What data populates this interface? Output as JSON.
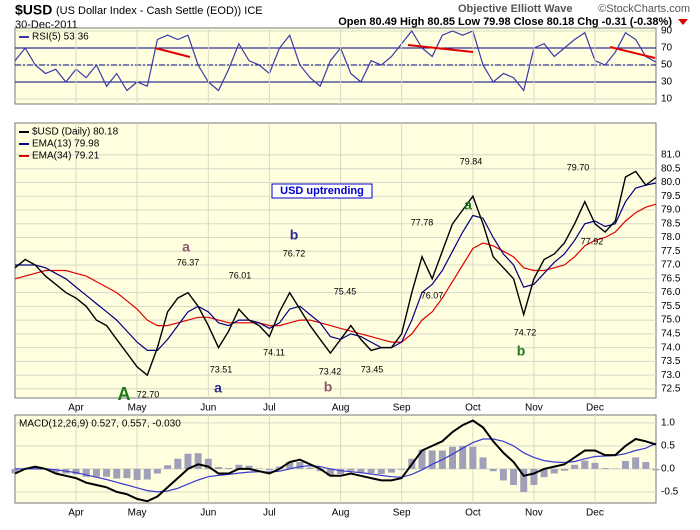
{
  "header": {
    "symbol": "$USD",
    "title": "(US Dollar Index - Cash Settle (EOD)) ICE",
    "date": "30-Dec-2011",
    "quote": "Open 80.49  High 80.85  Low 79.98  Close 80.18  Chg -0.31 (-0.38%)",
    "annotator": "Objective Elliott Wave",
    "source": "©StockCharts.com"
  },
  "chart_data": [
    {
      "type": "line",
      "ylim": [
        4.1,
        93.5
      ],
      "yticks": [
        10,
        30,
        50,
        70,
        90
      ],
      "thresholds": [
        70,
        30
      ],
      "midline": 50,
      "grid": true,
      "series": [
        {
          "name": "RSI(5) 53.36",
          "color": "#3a3aa8",
          "values": [
            55,
            70,
            50,
            40,
            45,
            30,
            45,
            35,
            50,
            25,
            40,
            20,
            30,
            25,
            80,
            85,
            80,
            85,
            50,
            30,
            20,
            45,
            75,
            55,
            50,
            40,
            70,
            85,
            50,
            35,
            25,
            55,
            70,
            40,
            30,
            55,
            50,
            60,
            75,
            90,
            70,
            60,
            85,
            90,
            85,
            90,
            50,
            30,
            40,
            35,
            20,
            70,
            75,
            60,
            70,
            80,
            88,
            55,
            50,
            65,
            88,
            80,
            60,
            53.36
          ]
        }
      ]
    },
    {
      "type": "line",
      "ylim": [
        72.17,
        82.16
      ],
      "grid": true,
      "yticks": [
        72.5,
        {
          "value": 73.0,
          "label": "73.0"
        },
        73.5,
        {
          "value": 74.0,
          "label": "74.0"
        },
        74.5,
        {
          "value": 75.0,
          "label": "75.0"
        },
        75.5,
        {
          "value": 76.0,
          "label": "76.0"
        },
        76.5,
        {
          "value": 77.0,
          "label": "77.0"
        },
        77.5,
        {
          "value": 78.0,
          "label": "78.0"
        },
        78.5,
        {
          "value": 79.0,
          "label": "79.0"
        },
        79.5,
        {
          "value": 80.0,
          "label": "80.0"
        },
        80.5,
        {
          "value": 81.0,
          "label": "81.0"
        }
      ],
      "categories": [
        null,
        null,
        null,
        null,
        null,
        null,
        "Apr",
        null,
        null,
        null,
        null,
        null,
        "May",
        null,
        null,
        null,
        null,
        null,
        null,
        "Jun",
        null,
        null,
        null,
        null,
        null,
        "Jul",
        null,
        null,
        null,
        null,
        null,
        null,
        "Aug",
        null,
        null,
        null,
        null,
        null,
        "Sep",
        null,
        null,
        null,
        null,
        null,
        null,
        "Oct",
        null,
        null,
        null,
        null,
        null,
        "Nov",
        null,
        null,
        null,
        null,
        null,
        "Dec",
        null,
        null,
        null,
        null,
        null,
        null
      ],
      "series": [
        {
          "name": "$USD (Daily) 80.18",
          "color": "#000000",
          "values": [
            76.9,
            77.2,
            77.0,
            76.6,
            76.3,
            76.0,
            75.8,
            75.5,
            75.0,
            74.8,
            74.3,
            73.8,
            73.3,
            73.0,
            74.0,
            75.3,
            75.8,
            76.0,
            75.5,
            74.8,
            74.0,
            74.6,
            75.4,
            75.0,
            74.8,
            74.4,
            75.3,
            76.0,
            75.4,
            74.8,
            74.3,
            73.8,
            74.3,
            74.8,
            74.3,
            73.9,
            74.0,
            74.0,
            74.5,
            76.0,
            77.3,
            76.5,
            77.5,
            78.5,
            79.0,
            79.5,
            78.5,
            77.3,
            76.9,
            76.5,
            75.2,
            76.5,
            77.2,
            77.4,
            77.8,
            78.5,
            79.3,
            78.5,
            78.2,
            78.6,
            80.2,
            80.4,
            79.9,
            80.18
          ]
        },
        {
          "name": "EMA(13) 79.98",
          "color": "#000080",
          "values": [
            77.0,
            77.0,
            77.0,
            76.9,
            76.7,
            76.5,
            76.2,
            75.9,
            75.6,
            75.3,
            75.0,
            74.6,
            74.2,
            73.9,
            73.9,
            74.3,
            74.8,
            75.3,
            75.5,
            75.3,
            74.9,
            74.8,
            75.0,
            75.0,
            74.9,
            74.7,
            74.9,
            75.4,
            75.5,
            75.2,
            74.9,
            74.4,
            74.3,
            74.5,
            74.4,
            74.2,
            74.0,
            74.0,
            74.2,
            75.0,
            76.0,
            76.3,
            76.8,
            77.5,
            78.2,
            78.8,
            78.7,
            78.0,
            77.4,
            77.0,
            76.2,
            76.3,
            76.7,
            77.1,
            77.4,
            77.9,
            78.5,
            78.6,
            78.4,
            78.5,
            79.3,
            79.8,
            79.9,
            79.98
          ]
        },
        {
          "name": "EMA(34) 79.21",
          "color": "#e00000",
          "values": [
            76.5,
            76.6,
            76.7,
            76.8,
            76.8,
            76.8,
            76.7,
            76.6,
            76.4,
            76.2,
            76.0,
            75.7,
            75.4,
            75.0,
            74.8,
            74.8,
            74.9,
            75.0,
            75.1,
            75.1,
            75.0,
            74.9,
            74.9,
            74.9,
            74.9,
            74.8,
            74.8,
            74.9,
            75.0,
            75.0,
            74.9,
            74.8,
            74.7,
            74.6,
            74.5,
            74.4,
            74.3,
            74.2,
            74.2,
            74.5,
            75.0,
            75.3,
            75.8,
            76.4,
            77.0,
            77.6,
            77.8,
            77.7,
            77.5,
            77.3,
            76.9,
            76.8,
            76.8,
            76.9,
            77.0,
            77.3,
            77.7,
            77.9,
            78.0,
            78.2,
            78.6,
            78.9,
            79.1,
            79.21
          ]
        }
      ],
      "annotations": [
        {
          "text": "USD uptrending",
          "color": "#0000cc"
        },
        {
          "text": "a",
          "color": "#8b5a6b"
        },
        {
          "text": "b",
          "color": "#2a2a90"
        },
        {
          "text": "a",
          "color": "#2a2a90"
        },
        {
          "text": "b",
          "color": "#8b5a6b"
        },
        {
          "text": "A",
          "color": "#1a7a1a"
        },
        {
          "text": "a",
          "color": "#1a7a1a"
        },
        {
          "text": "b",
          "color": "#1a7a1a"
        },
        {
          "text": "76.37"
        },
        {
          "text": "76.01"
        },
        {
          "text": "76.72"
        },
        {
          "text": "75.45"
        },
        {
          "text": "74.11"
        },
        {
          "text": "73.51"
        },
        {
          "text": "73.42"
        },
        {
          "text": "73.45"
        },
        {
          "text": "72.70"
        },
        {
          "text": "77.78"
        },
        {
          "text": "76.07"
        },
        {
          "text": "79.84"
        },
        {
          "text": "74.72"
        },
        {
          "text": "79.70"
        },
        {
          "text": "77.92"
        }
      ]
    },
    {
      "type": "line",
      "label": "MACD(12,26,9) 0.527, 0.557, -0.030",
      "ylim": [
        -0.74,
        1.17
      ],
      "grid": true,
      "yticks": [
        {
          "value": 1.0,
          "label": "1.0"
        },
        0.5,
        {
          "value": 0.0,
          "label": "0.0"
        },
        -0.5
      ],
      "categories": [
        null,
        null,
        null,
        null,
        null,
        null,
        "Apr",
        null,
        null,
        null,
        null,
        null,
        "May",
        null,
        null,
        null,
        null,
        null,
        null,
        "Jun",
        null,
        null,
        null,
        null,
        null,
        "Jul",
        null,
        null,
        null,
        null,
        null,
        null,
        "Aug",
        null,
        null,
        null,
        null,
        null,
        "Sep",
        null,
        null,
        null,
        null,
        null,
        null,
        "Oct",
        null,
        null,
        null,
        null,
        null,
        "Nov",
        null,
        null,
        null,
        null,
        null,
        "Dec",
        null,
        null,
        null,
        null,
        null,
        null
      ],
      "histogram": {
        "color": "#a0a0b8",
        "values": [
          -0.1,
          0,
          0.05,
          0,
          -0.08,
          -0.1,
          -0.12,
          -0.17,
          -0.17,
          -0.17,
          -0.21,
          -0.2,
          -0.24,
          -0.23,
          -0.1,
          0.08,
          0.22,
          0.33,
          0.34,
          0.22,
          0.04,
          0.02,
          0.09,
          0.07,
          0.01,
          -0.03,
          0.05,
          0.15,
          0.15,
          0.03,
          -0.05,
          -0.15,
          -0.11,
          -0.04,
          -0.07,
          -0.09,
          -0.11,
          -0.08,
          -0.02,
          0.22,
          0.42,
          0.4,
          0.4,
          0.48,
          0.5,
          0.48,
          0.25,
          -0.05,
          -0.25,
          -0.35,
          -0.5,
          -0.35,
          -0.18,
          -0.1,
          -0.04,
          0.09,
          0.18,
          0.13,
          0.02,
          0.01,
          0.17,
          0.25,
          0.15,
          -0.03
        ]
      },
      "series": [
        {
          "color": "#000000",
          "values": [
            -0.1,
            0.0,
            0.05,
            0.0,
            -0.1,
            -0.15,
            -0.2,
            -0.3,
            -0.35,
            -0.4,
            -0.5,
            -0.55,
            -0.65,
            -0.7,
            -0.6,
            -0.4,
            -0.2,
            0.0,
            0.1,
            0.05,
            -0.1,
            -0.1,
            0.0,
            0.0,
            -0.05,
            -0.1,
            0.0,
            0.15,
            0.2,
            0.1,
            0.0,
            -0.15,
            -0.15,
            -0.1,
            -0.15,
            -0.2,
            -0.25,
            -0.25,
            -0.2,
            0.1,
            0.4,
            0.5,
            0.6,
            0.8,
            0.95,
            1.05,
            0.9,
            0.6,
            0.35,
            0.15,
            -0.15,
            -0.1,
            0.0,
            0.05,
            0.1,
            0.25,
            0.4,
            0.4,
            0.3,
            0.3,
            0.5,
            0.65,
            0.6,
            0.527
          ]
        },
        {
          "color": "#3a3ad0",
          "values": [
            0.0,
            0.0,
            0.0,
            0.0,
            -0.02,
            -0.05,
            -0.08,
            -0.13,
            -0.18,
            -0.23,
            -0.29,
            -0.35,
            -0.41,
            -0.47,
            -0.5,
            -0.48,
            -0.42,
            -0.33,
            -0.24,
            -0.17,
            -0.14,
            -0.12,
            -0.09,
            -0.07,
            -0.06,
            -0.07,
            -0.05,
            0.0,
            0.05,
            0.07,
            0.05,
            0.0,
            -0.04,
            -0.06,
            -0.08,
            -0.11,
            -0.14,
            -0.17,
            -0.18,
            -0.12,
            -0.02,
            0.1,
            0.2,
            0.32,
            0.45,
            0.57,
            0.65,
            0.65,
            0.6,
            0.5,
            0.35,
            0.25,
            0.18,
            0.15,
            0.14,
            0.16,
            0.22,
            0.27,
            0.28,
            0.29,
            0.33,
            0.4,
            0.45,
            0.557
          ]
        }
      ]
    }
  ]
}
